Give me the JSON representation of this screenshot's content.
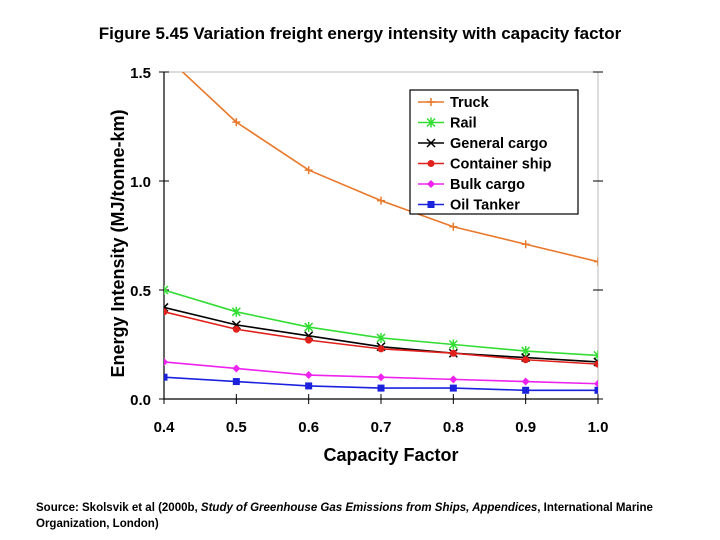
{
  "figure": {
    "title": "Figure 5.45 Variation freight energy intensity with capacity factor",
    "source_prefix": "Source: Skolsvik et al (2000b, ",
    "source_title": "Study of Greenhouse Gas Emissions from Ships, Appendices",
    "source_suffix": ", International Marine Organization, London)"
  },
  "chart_data": {
    "type": "line",
    "xlabel": "Capacity Factor",
    "ylabel": "Energy Intensity (MJ/tonne-km)",
    "xlim": [
      0.4,
      1.0
    ],
    "ylim": [
      0.0,
      1.5
    ],
    "x_ticks": [
      "0.4",
      "0.5",
      "0.6",
      "0.7",
      "0.8",
      "0.9",
      "1.0"
    ],
    "y_ticks": [
      "0.0",
      "0.5",
      "1.0",
      "1.5"
    ],
    "grid": false,
    "legend_position": "top-right",
    "x": [
      0.4,
      0.5,
      0.6,
      0.7,
      0.8,
      0.9,
      1.0
    ],
    "series": [
      {
        "name": "Truck",
        "color": "#e8782a",
        "marker": "plus",
        "values": [
          1.58,
          1.27,
          1.05,
          0.91,
          0.79,
          0.71,
          0.63
        ]
      },
      {
        "name": "Rail",
        "color": "#33dd33",
        "marker": "star",
        "values": [
          0.5,
          0.4,
          0.33,
          0.28,
          0.25,
          0.22,
          0.2
        ]
      },
      {
        "name": "General cargo",
        "color": "#000000",
        "marker": "x",
        "values": [
          0.42,
          0.34,
          0.29,
          0.24,
          0.21,
          0.19,
          0.17
        ]
      },
      {
        "name": "Container ship",
        "color": "#e0201a",
        "marker": "circle",
        "values": [
          0.4,
          0.32,
          0.27,
          0.23,
          0.21,
          0.18,
          0.16
        ]
      },
      {
        "name": "Bulk cargo",
        "color": "#ee22ee",
        "marker": "diamond",
        "values": [
          0.17,
          0.14,
          0.11,
          0.1,
          0.09,
          0.08,
          0.07
        ]
      },
      {
        "name": "Oil Tanker",
        "color": "#1a22dd",
        "marker": "square",
        "values": [
          0.1,
          0.08,
          0.06,
          0.05,
          0.05,
          0.04,
          0.04
        ]
      }
    ]
  }
}
